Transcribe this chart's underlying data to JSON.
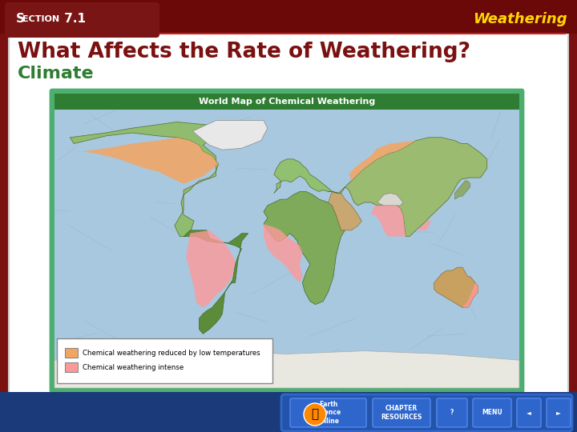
{
  "bg_outer": "#7A1010",
  "bg_inner": "#FFFFFF",
  "header_bg": "#6B0808",
  "section_label": "Section 7.1",
  "section_label_color": "#FFFFFF",
  "section_box_color": "#8B1515",
  "title_text": "What Affects the Rate of Weathering?",
  "title_color": "#7A1010",
  "subtitle_text": "Climate",
  "subtitle_color": "#2E7D32",
  "weathering_label": "Weathering",
  "weathering_color": "#FFD700",
  "map_title": "World Map of Chemical Weathering",
  "map_title_bg": "#2E7D32",
  "map_title_color": "#FFFFFF",
  "legend_item1_color": "#F4A460",
  "legend_item1_text": "Chemical weathering reduced by low temperatures",
  "legend_item2_color": "#FF9999",
  "legend_item2_text": "Chemical weathering intense",
  "footer_bg": "#1A3A7A",
  "ocean_color": "#A8C8E0",
  "land_base": "#7DB87D",
  "red_line_color": "#CC2222"
}
